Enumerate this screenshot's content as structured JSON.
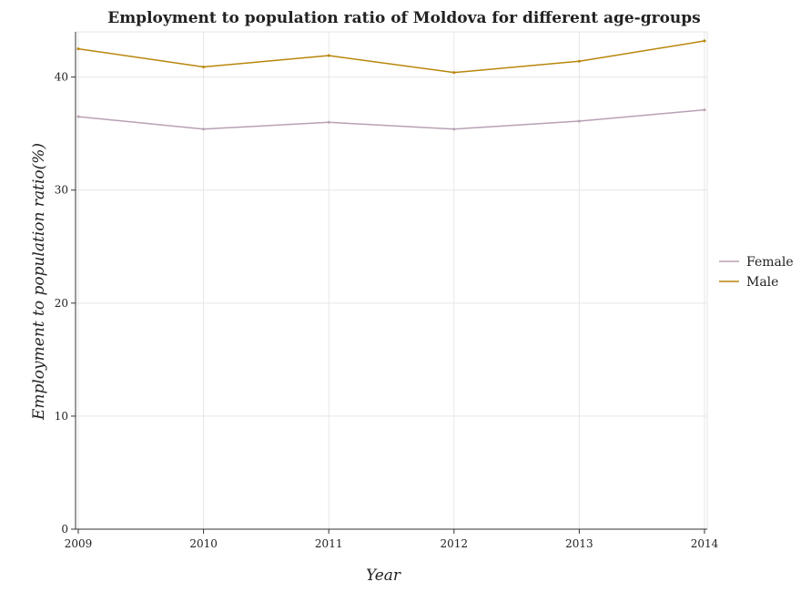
{
  "chart_data": {
    "type": "line",
    "title": "Employment to population ratio of Moldova for different age-groups",
    "xlabel": "Year",
    "ylabel": "Employment to population ratio(%)",
    "categories": [
      "2009",
      "2010",
      "2011",
      "2012",
      "2013",
      "2014"
    ],
    "y_ticks": [
      "0",
      "10",
      "20",
      "30",
      "40"
    ],
    "ylim": [
      0,
      44
    ],
    "grid": true,
    "legend_position": "right",
    "series": [
      {
        "name": "Female",
        "color": "#b8a1b3",
        "values": [
          36.5,
          35.4,
          36.0,
          35.4,
          36.1,
          37.1
        ]
      },
      {
        "name": "Male",
        "color": "#b8860b",
        "values": [
          42.5,
          40.9,
          41.9,
          40.4,
          41.4,
          43.2
        ]
      }
    ]
  }
}
